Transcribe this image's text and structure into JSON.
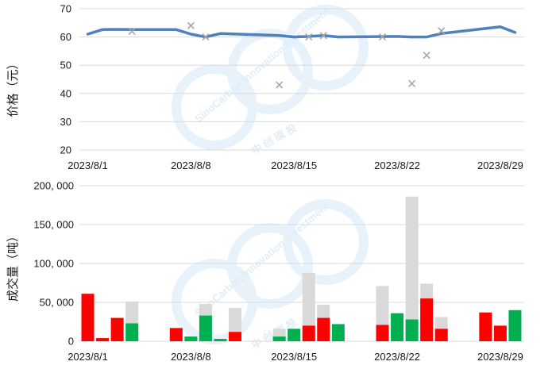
{
  "chart_data": [
    {
      "type": "line",
      "ylabel": "价格（元）",
      "ylim": [
        20,
        70
      ],
      "yticks": [
        "20",
        "30",
        "40",
        "50",
        "60",
        "70"
      ],
      "xlim": [
        "2023/8/1",
        "2023/8/30"
      ],
      "xtick_labels": [
        "2023/8/1",
        "2023/8/8",
        "2023/8/15",
        "2023/8/22",
        "2023/8/29"
      ],
      "grid": true,
      "series": [
        {
          "kind": "line",
          "color": "#4f81bd",
          "points": [
            {
              "x": "2023/8/1",
              "y": 61.0
            },
            {
              "x": "2023/8/2",
              "y": 62.6
            },
            {
              "x": "2023/8/3",
              "y": 62.7
            },
            {
              "x": "2023/8/4",
              "y": 62.6
            },
            {
              "x": "2023/8/7",
              "y": 62.6
            },
            {
              "x": "2023/8/8",
              "y": 61.0
            },
            {
              "x": "2023/8/9",
              "y": 60.0
            },
            {
              "x": "2023/8/10",
              "y": 61.2
            },
            {
              "x": "2023/8/14",
              "y": 60.5
            },
            {
              "x": "2023/8/15",
              "y": 60.0
            },
            {
              "x": "2023/8/16",
              "y": 60.2
            },
            {
              "x": "2023/8/17",
              "y": 60.5
            },
            {
              "x": "2023/8/18",
              "y": 60.0
            },
            {
              "x": "2023/8/22",
              "y": 60.2
            },
            {
              "x": "2023/8/23",
              "y": 60.0
            },
            {
              "x": "2023/8/24",
              "y": 60.0
            },
            {
              "x": "2023/8/25",
              "y": 61.2
            },
            {
              "x": "2023/8/28",
              "y": 63.0
            },
            {
              "x": "2023/8/29",
              "y": 63.6
            },
            {
              "x": "2023/8/30",
              "y": 61.6
            }
          ]
        },
        {
          "kind": "scatter",
          "marker": "x",
          "color": "#a6a6a6",
          "points": [
            {
              "x": "2023/8/4",
              "y": 62.0
            },
            {
              "x": "2023/8/8",
              "y": 64.0
            },
            {
              "x": "2023/8/9",
              "y": 60.0
            },
            {
              "x": "2023/8/14",
              "y": 43.0
            },
            {
              "x": "2023/8/16",
              "y": 60.0
            },
            {
              "x": "2023/8/17",
              "y": 60.5
            },
            {
              "x": "2023/8/21",
              "y": 60.0
            },
            {
              "x": "2023/8/23",
              "y": 43.5
            },
            {
              "x": "2023/8/24",
              "y": 53.5
            },
            {
              "x": "2023/8/25",
              "y": 62.2
            }
          ]
        }
      ]
    },
    {
      "type": "bar",
      "ylabel": "成交量（吨）",
      "ylim": [
        0,
        200000
      ],
      "yticks": [
        "0",
        "50, 000",
        "100, 000",
        "150, 000",
        "200, 000"
      ],
      "xlim": [
        "2023/8/1",
        "2023/8/30"
      ],
      "xtick_labels": [
        "2023/8/1",
        "2023/8/8",
        "2023/8/15",
        "2023/8/22",
        "2023/8/29"
      ],
      "grid": true,
      "colors": {
        "total": "#d9d9d9",
        "red": "#ff0000",
        "green": "#00b050"
      },
      "bars": [
        {
          "x": "2023/8/1",
          "total": 61000,
          "value": 61000,
          "color": "red"
        },
        {
          "x": "2023/8/2",
          "total": 4000,
          "value": 4000,
          "color": "red"
        },
        {
          "x": "2023/8/3",
          "total": 30000,
          "value": 30000,
          "color": "red"
        },
        {
          "x": "2023/8/4",
          "total": 51000,
          "value": 23000,
          "color": "green"
        },
        {
          "x": "2023/8/7",
          "total": 17000,
          "value": 17000,
          "color": "red"
        },
        {
          "x": "2023/8/8",
          "total": 6000,
          "value": 6000,
          "color": "green"
        },
        {
          "x": "2023/8/9",
          "total": 48000,
          "value": 33000,
          "color": "green"
        },
        {
          "x": "2023/8/10",
          "total": 3000,
          "value": 3000,
          "color": "green"
        },
        {
          "x": "2023/8/11",
          "total": 43000,
          "value": 12000,
          "color": "red"
        },
        {
          "x": "2023/8/14",
          "total": 16000,
          "value": 6000,
          "color": "green"
        },
        {
          "x": "2023/8/15",
          "total": 16000,
          "value": 16000,
          "color": "green"
        },
        {
          "x": "2023/8/16",
          "total": 88000,
          "value": 20000,
          "color": "red"
        },
        {
          "x": "2023/8/17",
          "total": 47000,
          "value": 30000,
          "color": "red"
        },
        {
          "x": "2023/8/18",
          "total": 22000,
          "value": 22000,
          "color": "green"
        },
        {
          "x": "2023/8/21",
          "total": 71000,
          "value": 21000,
          "color": "red"
        },
        {
          "x": "2023/8/22",
          "total": 36000,
          "value": 36000,
          "color": "green"
        },
        {
          "x": "2023/8/23",
          "total": 186000,
          "value": 28000,
          "color": "green"
        },
        {
          "x": "2023/8/24",
          "total": 74000,
          "value": 55000,
          "color": "red"
        },
        {
          "x": "2023/8/25",
          "total": 31000,
          "value": 16000,
          "color": "red"
        },
        {
          "x": "2023/8/28",
          "total": 37000,
          "value": 37000,
          "color": "red"
        },
        {
          "x": "2023/8/29",
          "total": 20000,
          "value": 20000,
          "color": "red"
        },
        {
          "x": "2023/8/30",
          "total": 40000,
          "value": 40000,
          "color": "green"
        }
      ]
    }
  ],
  "watermark": {
    "company_cn": "中 创 碳 投",
    "company_en": "SinoCarbon Innovation Investment",
    "color": "#c9dff0"
  }
}
